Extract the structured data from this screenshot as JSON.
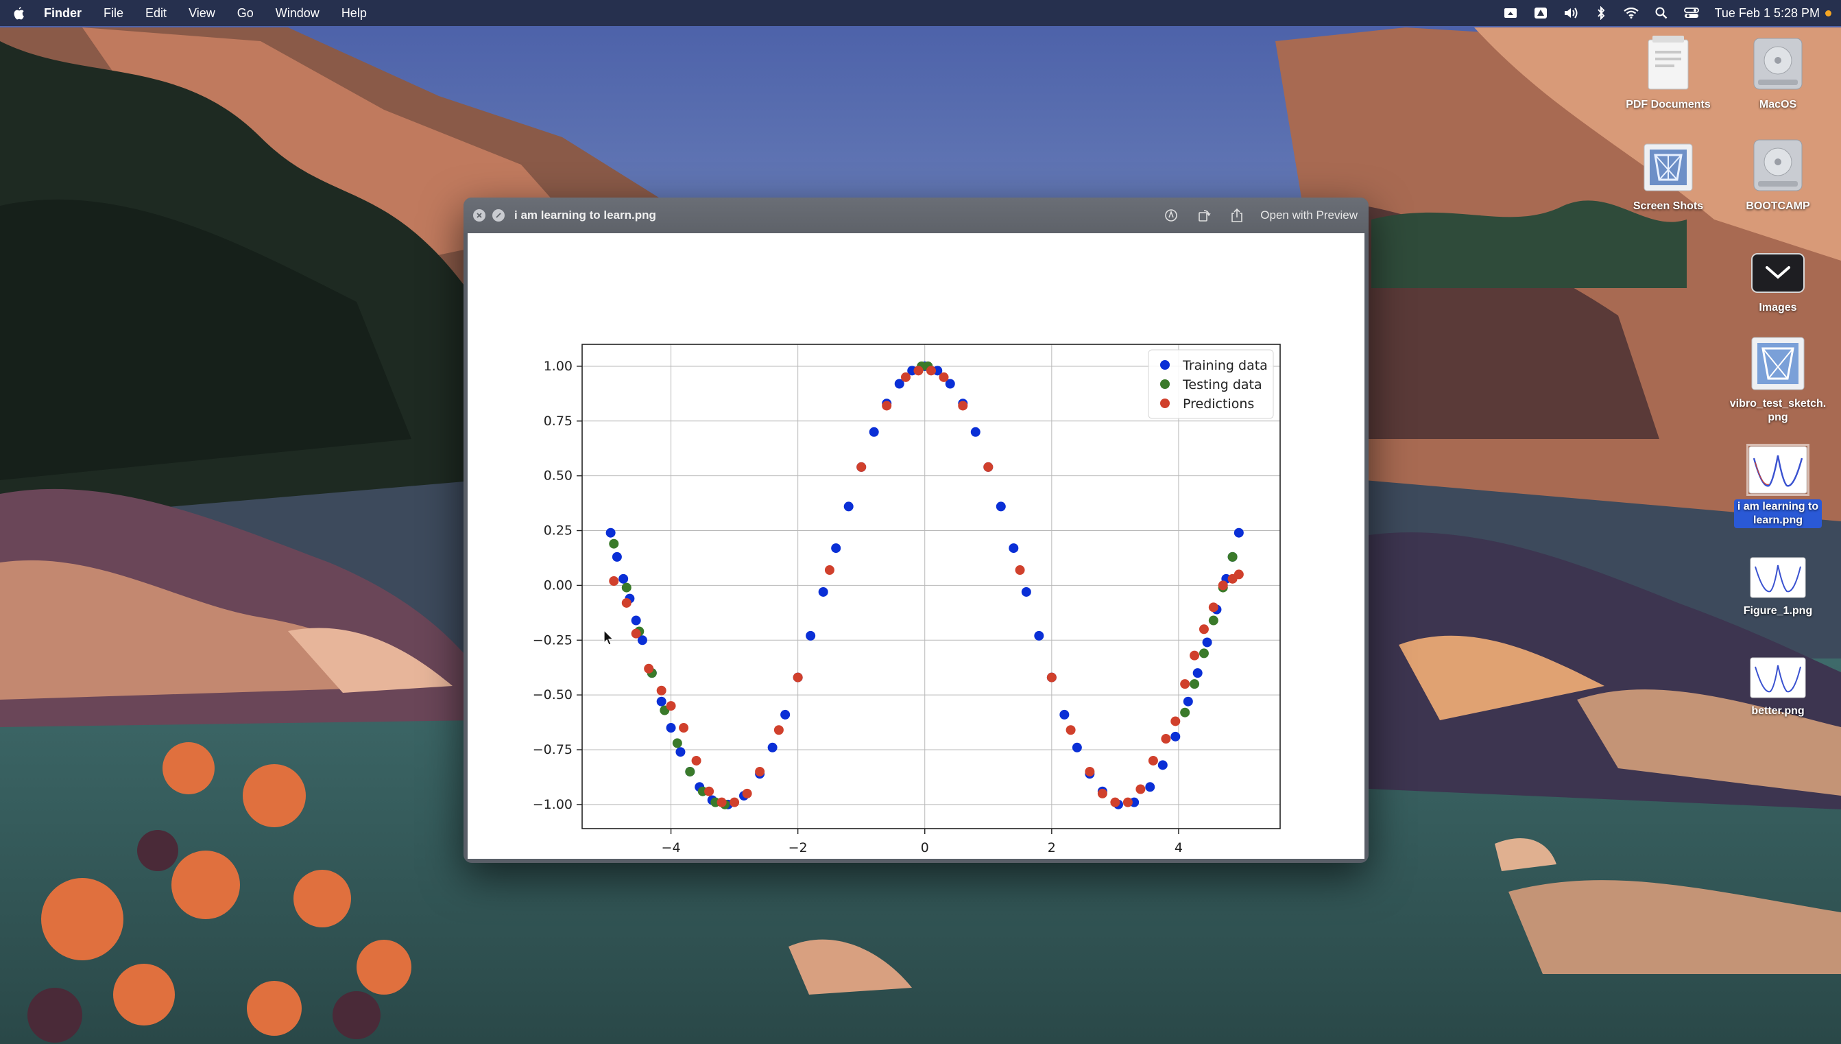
{
  "menubar": {
    "app_name": "Finder",
    "menus": [
      "File",
      "Edit",
      "View",
      "Go",
      "Window",
      "Help"
    ],
    "clock": "Tue Feb 1  5:28 PM",
    "status_icons": [
      "screen-mirroring-icon",
      "drive-icon",
      "volume-icon",
      "bluetooth-icon",
      "wifi-icon",
      "spotlight-search-icon",
      "control-center-icon"
    ],
    "indicator_color": "#f5a623"
  },
  "desktop": {
    "icons": [
      {
        "label": "PDF Documents",
        "icon": "folder-pdf-icon"
      },
      {
        "label": "MacOS",
        "icon": "hard-drive-icon"
      },
      {
        "label": "Screen Shots",
        "icon": "folder-screenshots-icon"
      },
      {
        "label": "BOOTCAMP",
        "icon": "hard-drive-icon"
      },
      {
        "label": "Images",
        "icon": "stack-images-icon"
      },
      {
        "label": "vibro_test_sketch.\npng",
        "icon": "image-file-icon"
      },
      {
        "label": "i am learning to\nlearn.png",
        "icon": "image-file-icon",
        "selected": true
      },
      {
        "label": "Figure_1.png",
        "icon": "image-file-icon"
      },
      {
        "label": "better.png",
        "icon": "image-file-icon"
      }
    ]
  },
  "quicklook": {
    "title": "i am learning to learn.png",
    "open_with": "Open with Preview",
    "tool_icons": [
      "markup-icon",
      "rotate-icon",
      "share-icon"
    ]
  },
  "colors": {
    "training": "#0a2fd6",
    "testing": "#3a7a2a",
    "predictions": "#d0402c",
    "selection": "#2a59d6"
  },
  "chart_data": {
    "type": "scatter",
    "title": "",
    "xlabel": "",
    "ylabel": "",
    "xlim": [
      -5.4,
      5.6
    ],
    "ylim": [
      -1.11,
      1.1
    ],
    "xticks": [
      -4,
      -2,
      0,
      2,
      4
    ],
    "xtick_labels": [
      "−4",
      "−2",
      "0",
      "2",
      "4"
    ],
    "yticks": [
      1.0,
      0.75,
      0.5,
      0.25,
      0.0,
      -0.25,
      -0.5,
      -0.75,
      -1.0
    ],
    "ytick_labels": [
      "1.00",
      "0.75",
      "0.50",
      "0.25",
      "0.00",
      "−0.25",
      "−0.50",
      "−0.75",
      "−1.00"
    ],
    "grid": true,
    "legend_position": "upper right",
    "series": [
      {
        "name": "Training data",
        "color": "#0a2fd6",
        "x": [
          -4.95,
          -4.85,
          -4.75,
          -4.65,
          -4.55,
          -4.45,
          -4.3,
          -4.15,
          -4.0,
          -3.85,
          -3.7,
          -3.55,
          -3.35,
          -3.1,
          -2.85,
          -2.6,
          -2.4,
          -2.2,
          -2.0,
          -1.8,
          -1.6,
          -1.4,
          -1.2,
          -1.0,
          -0.8,
          -0.6,
          -0.4,
          -0.2,
          0.0,
          0.2,
          0.4,
          0.6,
          0.8,
          1.0,
          1.2,
          1.4,
          1.6,
          1.8,
          2.0,
          2.2,
          2.4,
          2.6,
          2.8,
          3.05,
          3.3,
          3.55,
          3.75,
          3.95,
          4.15,
          4.3,
          4.45,
          4.6,
          4.75,
          4.85,
          4.95
        ],
        "y": [
          0.24,
          0.13,
          0.03,
          -0.06,
          -0.16,
          -0.25,
          -0.4,
          -0.53,
          -0.65,
          -0.76,
          -0.85,
          -0.92,
          -0.98,
          -1.0,
          -0.96,
          -0.86,
          -0.74,
          -0.59,
          -0.42,
          -0.23,
          -0.03,
          0.17,
          0.36,
          0.54,
          0.7,
          0.83,
          0.92,
          0.98,
          1.0,
          0.98,
          0.92,
          0.83,
          0.7,
          0.54,
          0.36,
          0.17,
          -0.03,
          -0.23,
          -0.42,
          -0.59,
          -0.74,
          -0.86,
          -0.94,
          -1.0,
          -0.99,
          -0.92,
          -0.82,
          -0.69,
          -0.53,
          -0.4,
          -0.26,
          -0.11,
          0.03,
          0.13,
          0.24
        ]
      },
      {
        "name": "Testing data",
        "color": "#3a7a2a",
        "x": [
          -4.9,
          -4.7,
          -4.5,
          -4.3,
          -4.1,
          -3.9,
          -3.7,
          -3.5,
          -3.3,
          -3.15,
          -0.05,
          0.05,
          4.1,
          4.25,
          4.4,
          4.55,
          4.7,
          4.85
        ],
        "y": [
          0.19,
          -0.01,
          -0.21,
          -0.4,
          -0.57,
          -0.72,
          -0.85,
          -0.94,
          -0.99,
          -1.0,
          1.0,
          1.0,
          -0.58,
          -0.45,
          -0.31,
          -0.16,
          -0.01,
          0.13
        ]
      },
      {
        "name": "Predictions",
        "color": "#d0402c",
        "x": [
          -4.9,
          -4.7,
          -4.55,
          -4.35,
          -4.15,
          -4.0,
          -3.8,
          -3.6,
          -3.4,
          -3.2,
          -3.0,
          -2.8,
          -2.6,
          -2.3,
          -2.0,
          -1.5,
          -1.0,
          -0.6,
          -0.3,
          -0.1,
          0.1,
          0.3,
          0.6,
          1.0,
          1.5,
          2.0,
          2.3,
          2.6,
          2.8,
          3.0,
          3.2,
          3.4,
          3.6,
          3.8,
          3.95,
          4.1,
          4.25,
          4.4,
          4.55,
          4.7,
          4.85,
          4.95
        ],
        "y": [
          0.02,
          -0.08,
          -0.22,
          -0.38,
          -0.48,
          -0.55,
          -0.65,
          -0.8,
          -0.94,
          -0.99,
          -0.99,
          -0.95,
          -0.85,
          -0.66,
          -0.42,
          0.07,
          0.54,
          0.82,
          0.95,
          0.98,
          0.98,
          0.95,
          0.82,
          0.54,
          0.07,
          -0.42,
          -0.66,
          -0.85,
          -0.95,
          -0.99,
          -0.99,
          -0.93,
          -0.8,
          -0.7,
          -0.62,
          -0.45,
          -0.32,
          -0.2,
          -0.1,
          0.0,
          0.03,
          0.05
        ]
      }
    ]
  }
}
